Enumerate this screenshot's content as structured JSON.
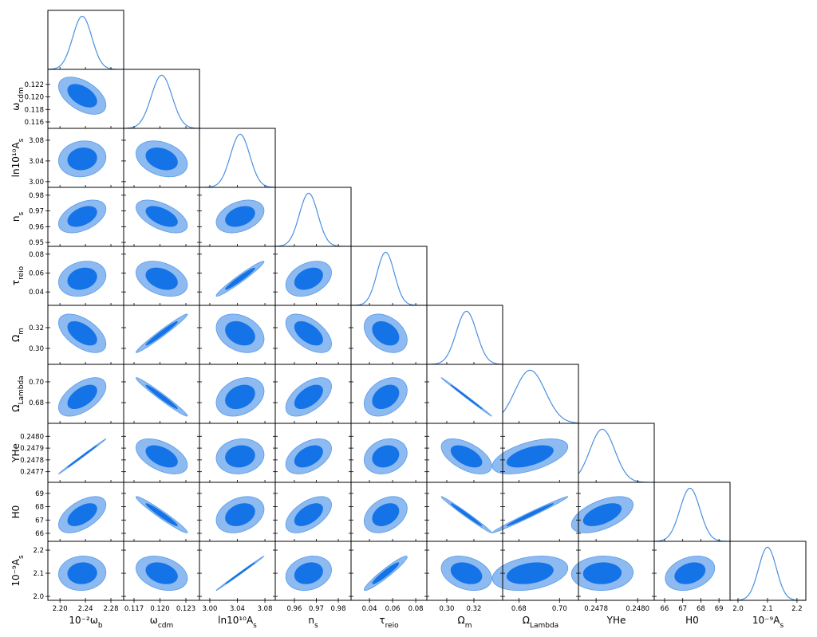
{
  "chart_data": {
    "type": "corner",
    "colors": {
      "inner": "#1473e6",
      "outer": "#8dbaf0",
      "edge": "#5a9be8",
      "line": "#4a90e2"
    },
    "params": [
      {
        "label": [
          "10⁻²ω",
          "b"
        ],
        "mean": 2.235,
        "sigma": 0.015,
        "xlim": [
          2.181,
          2.3
        ],
        "xticks": [
          {
            "value": 2.2,
            "label": "2.20"
          },
          2.24,
          2.28
        ]
      },
      {
        "label": [
          "ω",
          "cdm"
        ],
        "mean": 0.1202,
        "sigma": 0.0012,
        "xlim": [
          0.1158,
          0.12457
        ],
        "xticks": [
          0.117,
          {
            "value": 0.12,
            "label": "0.120"
          },
          0.123
        ],
        "ylim": [
          0.11498,
          0.12441
        ],
        "yticks": [
          0.116,
          0.118,
          {
            "value": 0.12,
            "label": "0.120"
          },
          0.122
        ]
      },
      {
        "label": [
          "ln10¹⁰A",
          "s"
        ],
        "mean": 3.044,
        "sigma": 0.014,
        "xlim": [
          2.985,
          3.095
        ],
        "xticks": [
          {
            "value": 3,
            "label": "3.00"
          },
          3.04,
          3.08
        ],
        "ylim": [
          2.989,
          3.103
        ],
        "yticks": [
          {
            "value": 3,
            "label": "3.00"
          },
          3.04,
          3.08
        ]
      },
      {
        "label": [
          "n",
          "s"
        ],
        "mean": 0.9665,
        "sigma": 0.0042,
        "xlim": [
          0.9513,
          0.9858
        ],
        "xticks": [
          0.96,
          0.97,
          0.98
        ],
        "ylim": [
          0.9475,
          0.985
        ],
        "yticks": [
          0.95,
          0.96,
          0.97,
          0.98
        ]
      },
      {
        "label": [
          "τ",
          "reio"
        ],
        "mean": 0.054,
        "sigma": 0.0075,
        "xlim": [
          0.0241,
          0.0896
        ],
        "xticks": [
          0.04,
          0.06,
          0.08
        ],
        "ylim": [
          0.0258,
          0.0883
        ],
        "yticks": [
          0.04,
          0.06,
          0.08
        ]
      },
      {
        "label": [
          "Ω",
          "m"
        ],
        "mean": 0.3145,
        "sigma": 0.0075,
        "xlim": [
          0.2853,
          0.3412
        ],
        "xticks": [
          {
            "value": 0.3,
            "label": "0.30"
          },
          0.32
        ],
        "ylim": [
          0.2846,
          0.3415
        ],
        "yticks": [
          {
            "value": 0.3,
            "label": "0.30"
          },
          0.32
        ]
      },
      {
        "label": [
          "Ω",
          "Lambda"
        ],
        "mean": 0.6855,
        "sigma": 0.0075,
        "xlim": [
          0.672,
          0.7093
        ],
        "xticks": [
          0.68,
          {
            "value": 0.7,
            "label": "0.70"
          }
        ],
        "ylim": [
          0.66,
          0.7169
        ],
        "yticks": [
          0.68,
          {
            "value": 0.7,
            "label": "0.70"
          }
        ]
      },
      {
        "label": [
          "YHe"
        ],
        "mean": 0.24783,
        "sigma": 6e-05,
        "xlim": [
          0.247715,
          0.24808
        ],
        "xticks": [
          0.2478,
          {
            "value": 0.248,
            "label": "0.2480"
          }
        ],
        "ylim": [
          0.24761,
          0.24811
        ],
        "yticks": [
          0.2477,
          0.2478,
          0.2479,
          {
            "value": 0.248,
            "label": "0.2480"
          }
        ]
      },
      {
        "label": [
          "H0"
        ],
        "mean": 67.4,
        "sigma": 0.55,
        "xlim": [
          65.43,
          69.61
        ],
        "xticks": [
          66,
          67,
          68,
          69
        ],
        "ylim": [
          65.4,
          69.83
        ],
        "yticks": [
          66,
          67,
          68,
          69
        ]
      },
      {
        "label": [
          "10⁻⁹A",
          "s"
        ],
        "mean": 2.1,
        "sigma": 0.03,
        "xlim": [
          1.973,
          2.23
        ],
        "xticks": [
          {
            "value": 2,
            "label": "2.0"
          },
          2.1,
          2.2
        ],
        "ylim": [
          1.983,
          2.238
        ],
        "yticks": [
          {
            "value": 2,
            "label": "2.0"
          },
          2.1,
          2.2
        ]
      }
    ],
    "correlations": [
      [
        -0.5
      ],
      [
        0.1,
        -0.3
      ],
      [
        0.45,
        -0.55,
        0.35
      ],
      [
        0.2,
        -0.35,
        0.97,
        0.35
      ],
      [
        -0.55,
        0.98,
        -0.3,
        -0.55,
        -0.35
      ],
      [
        0.55,
        -0.98,
        0.3,
        0.55,
        0.35,
        -0.998
      ],
      [
        0.998,
        -0.5,
        0.1,
        0.45,
        0.2,
        -0.55,
        0.55
      ],
      [
        0.55,
        -0.97,
        0.3,
        0.55,
        0.35,
        -0.99,
        0.99,
        0.55
      ],
      [
        0.05,
        -0.3,
        0.998,
        0.2,
        0.95,
        -0.3,
        0.3,
        0.05,
        0.3
      ]
    ]
  }
}
